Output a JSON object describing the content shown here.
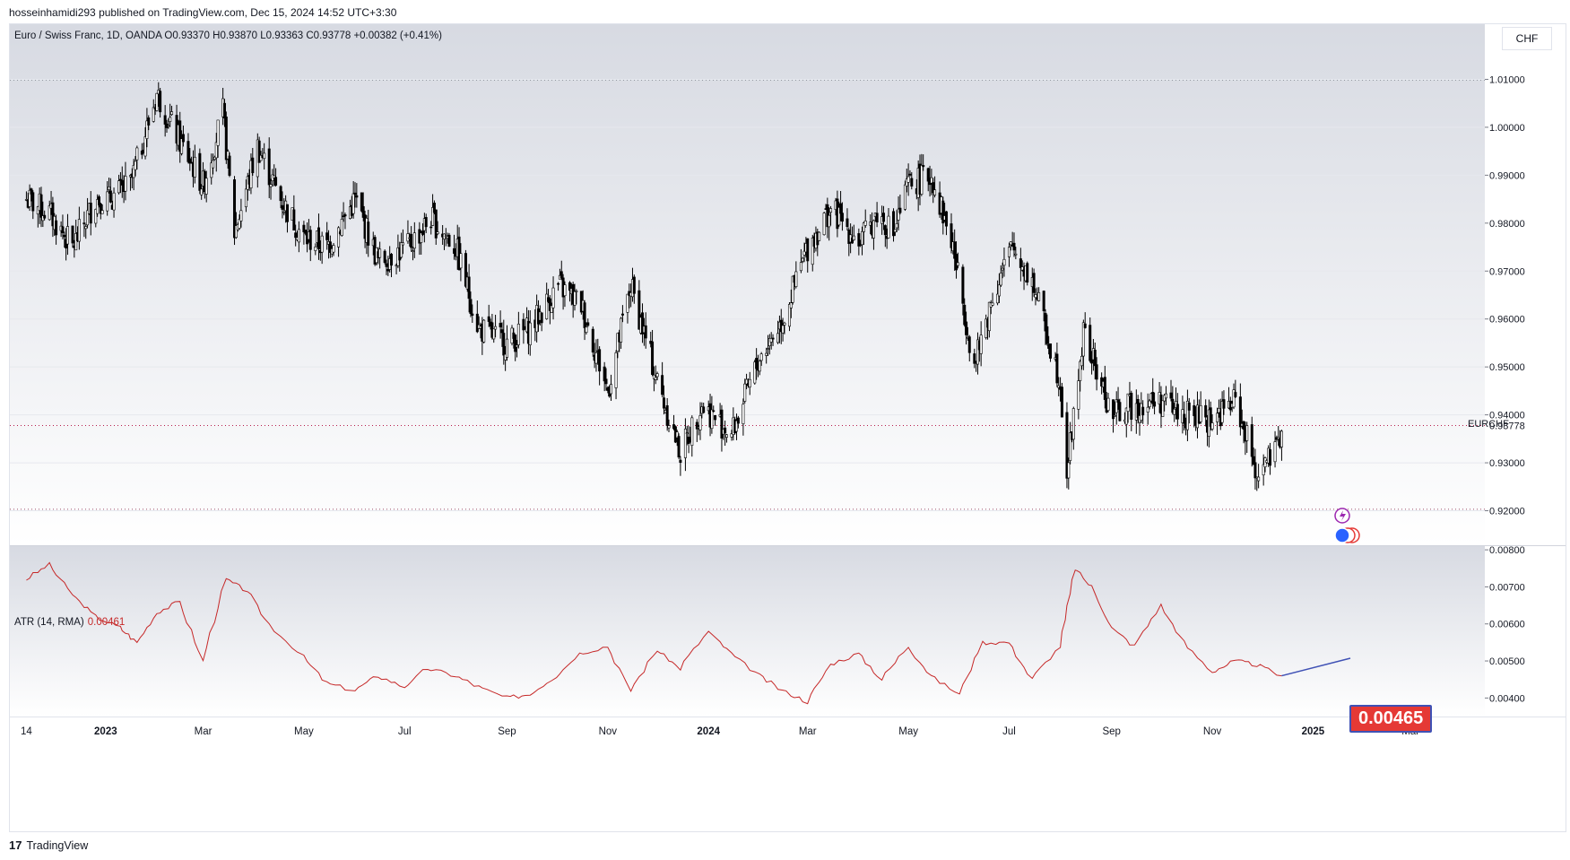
{
  "publish_line": "hosseinhamidi293 published on TradingView.com, Dec 15, 2024 14:52 UTC+3:30",
  "series_title": "Euro / Swiss Franc, 1D, OANDA  O0.93370  H0.93870  L0.93363  C0.93778  +0.00382 (+0.41%)",
  "currency": "CHF",
  "symbol": "EURCHF",
  "atr": {
    "title": "ATR (14, RMA)",
    "value": "0.00461",
    "callout": "0.00465"
  },
  "footer": {
    "logo_mark": "17",
    "brand": "TradingView"
  },
  "colors": {
    "candle": "#000000",
    "atr_line": "#c62828",
    "callout_bg": "#e53935",
    "callout_border": "#3f51b5",
    "grid": "#9598a1"
  },
  "chart_data": [
    {
      "type": "line",
      "title": "Euro / Swiss Franc, 1D, OANDA",
      "xlabel": "",
      "ylabel": "",
      "x_ticks": [
        "14",
        "2023",
        "Mar",
        "May",
        "Jul",
        "Sep",
        "Nov",
        "2024",
        "Mar",
        "May",
        "Jul",
        "Sep",
        "Nov",
        "2025",
        "Mar"
      ],
      "y_ticks": [
        "1.01000",
        "1.00000",
        "0.99000",
        "0.98000",
        "0.97000",
        "0.96000",
        "0.95000",
        "0.94000",
        "0.93000",
        "0.92000"
      ],
      "ylim": [
        0.9128,
        1.0215
      ],
      "last_price": "0.93778",
      "series": [
        {
          "name": "EURCHF",
          "x": [
            "2022-11-14",
            "2022-11-28",
            "2022-12-12",
            "2022-12-26",
            "2023-01-03",
            "2023-01-16",
            "2023-02-01",
            "2023-02-15",
            "2023-03-01",
            "2023-03-13",
            "2023-03-20",
            "2023-04-03",
            "2023-04-17",
            "2023-05-01",
            "2023-05-15",
            "2023-06-01",
            "2023-06-15",
            "2023-07-03",
            "2023-07-17",
            "2023-08-01",
            "2023-08-15",
            "2023-09-01",
            "2023-09-15",
            "2023-10-02",
            "2023-10-16",
            "2023-11-01",
            "2023-11-15",
            "2023-12-01",
            "2023-12-15",
            "2023-12-28",
            "2024-01-15",
            "2024-02-01",
            "2024-02-15",
            "2024-03-01",
            "2024-03-15",
            "2024-04-02",
            "2024-04-12",
            "2024-04-22",
            "2024-05-01",
            "2024-05-15",
            "2024-05-28",
            "2024-06-10",
            "2024-06-21",
            "2024-07-03",
            "2024-07-15",
            "2024-08-01",
            "2024-08-05",
            "2024-08-15",
            "2024-09-01",
            "2024-09-15",
            "2024-10-01",
            "2024-10-15",
            "2024-11-01",
            "2024-11-15",
            "2024-11-28",
            "2024-12-10",
            "2024-12-13"
          ],
          "y": [
            0.985,
            0.982,
            0.975,
            0.985,
            0.985,
            0.988,
            1.007,
            0.997,
            0.988,
            1.003,
            0.978,
            0.996,
            0.985,
            0.977,
            0.975,
            0.985,
            0.972,
            0.975,
            0.981,
            0.975,
            0.958,
            0.955,
            0.958,
            0.967,
            0.963,
            0.945,
            0.967,
            0.947,
            0.932,
            0.942,
            0.936,
            0.952,
            0.96,
            0.975,
            0.983,
            0.976,
            0.982,
            0.978,
            0.988,
            0.99,
            0.975,
            0.95,
            0.965,
            0.975,
            0.968,
            0.947,
            0.928,
            0.957,
            0.94,
            0.942,
            0.943,
            0.94,
            0.939,
            0.943,
            0.928,
            0.932,
            0.93778
          ]
        }
      ]
    },
    {
      "type": "line",
      "title": "ATR (14, RMA)",
      "y_ticks": [
        "0.00800",
        "0.00700",
        "0.00600",
        "0.00500",
        "0.00400"
      ],
      "ylim": [
        0.0035,
        0.0081
      ],
      "series": [
        {
          "name": "ATR (14, RMA)",
          "x": [
            "2022-11-14",
            "2022-11-28",
            "2022-12-12",
            "2022-12-26",
            "2023-01-10",
            "2023-01-20",
            "2023-02-01",
            "2023-02-15",
            "2023-03-01",
            "2023-03-15",
            "2023-03-28",
            "2023-04-10",
            "2023-05-01",
            "2023-05-15",
            "2023-06-01",
            "2023-06-15",
            "2023-07-01",
            "2023-07-15",
            "2023-08-01",
            "2023-08-15",
            "2023-09-01",
            "2023-09-15",
            "2023-10-01",
            "2023-10-15",
            "2023-11-01",
            "2023-11-15",
            "2023-12-01",
            "2023-12-15",
            "2024-01-01",
            "2024-01-15",
            "2024-02-01",
            "2024-02-15",
            "2024-03-01",
            "2024-03-15",
            "2024-04-01",
            "2024-04-15",
            "2024-05-01",
            "2024-05-15",
            "2024-06-01",
            "2024-06-15",
            "2024-07-01",
            "2024-07-15",
            "2024-08-01",
            "2024-08-10",
            "2024-08-20",
            "2024-09-01",
            "2024-09-15",
            "2024-10-01",
            "2024-10-15",
            "2024-11-01",
            "2024-11-15",
            "2024-11-28",
            "2024-12-13"
          ],
          "y": [
            0.0072,
            0.0076,
            0.0068,
            0.0062,
            0.0059,
            0.0055,
            0.0063,
            0.0066,
            0.005,
            0.0072,
            0.0069,
            0.006,
            0.0051,
            0.0044,
            0.0042,
            0.0046,
            0.0043,
            0.0048,
            0.0046,
            0.0043,
            0.004,
            0.0041,
            0.0046,
            0.0052,
            0.0054,
            0.0042,
            0.0053,
            0.0048,
            0.0058,
            0.0052,
            0.0046,
            0.0042,
            0.0039,
            0.0049,
            0.0052,
            0.0045,
            0.0054,
            0.0046,
            0.0041,
            0.0055,
            0.0055,
            0.0045,
            0.0054,
            0.0075,
            0.007,
            0.0059,
            0.0054,
            0.0065,
            0.0055,
            0.0047,
            0.005,
            0.0049,
            0.0046
          ]
        }
      ]
    }
  ]
}
